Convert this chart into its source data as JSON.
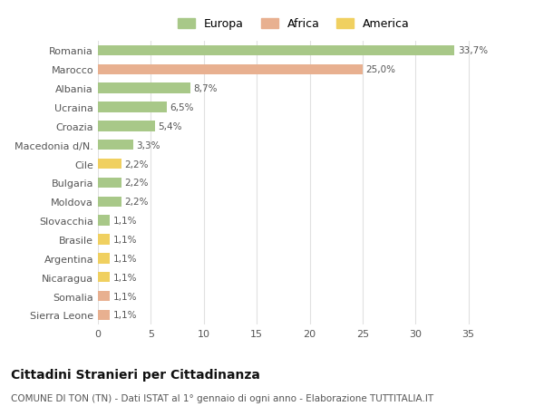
{
  "categories": [
    "Romania",
    "Marocco",
    "Albania",
    "Ucraina",
    "Croazia",
    "Macedonia d/N.",
    "Cile",
    "Bulgaria",
    "Moldova",
    "Slovacchia",
    "Brasile",
    "Argentina",
    "Nicaragua",
    "Somalia",
    "Sierra Leone"
  ],
  "values": [
    33.7,
    25.0,
    8.7,
    6.5,
    5.4,
    3.3,
    2.2,
    2.2,
    2.2,
    1.1,
    1.1,
    1.1,
    1.1,
    1.1,
    1.1
  ],
  "labels": [
    "33,7%",
    "25,0%",
    "8,7%",
    "6,5%",
    "5,4%",
    "3,3%",
    "2,2%",
    "2,2%",
    "2,2%",
    "1,1%",
    "1,1%",
    "1,1%",
    "1,1%",
    "1,1%",
    "1,1%"
  ],
  "colors": [
    "#a8c888",
    "#e8b090",
    "#a8c888",
    "#a8c888",
    "#a8c888",
    "#a8c888",
    "#f0d060",
    "#a8c888",
    "#a8c888",
    "#a8c888",
    "#f0d060",
    "#f0d060",
    "#f0d060",
    "#e8b090",
    "#e8b090"
  ],
  "legend_labels": [
    "Europa",
    "Africa",
    "America"
  ],
  "legend_colors": [
    "#a8c888",
    "#e8b090",
    "#f0d060"
  ],
  "title": "Cittadini Stranieri per Cittadinanza",
  "subtitle": "COMUNE DI TON (TN) - Dati ISTAT al 1° gennaio di ogni anno - Elaborazione TUTTITALIA.IT",
  "xlim": [
    0,
    37
  ],
  "xticks": [
    0,
    5,
    10,
    15,
    20,
    25,
    30,
    35
  ],
  "bg_color": "#ffffff",
  "grid_color": "#e0e0e0",
  "bar_height": 0.55,
  "label_fontsize": 7.5,
  "tick_fontsize": 8,
  "legend_fontsize": 9,
  "title_fontsize": 10,
  "subtitle_fontsize": 7.5
}
